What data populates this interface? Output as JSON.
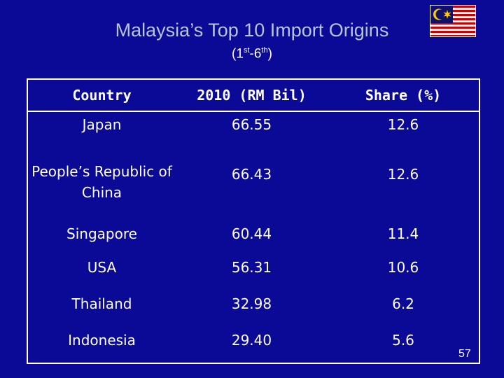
{
  "slide": {
    "title": "Malaysia’s Top 10 Import Origins",
    "subtitle": {
      "open": "(1",
      "sup1": "st",
      "mid": "-6",
      "sup2": "th",
      "close": ")"
    },
    "page_number": "57"
  },
  "flag": {
    "name": "malaysia-flag",
    "colors": {
      "red": "#cc0000",
      "white": "#ffffff",
      "blue": "#10106a",
      "yellow": "#ffcc00"
    }
  },
  "table": {
    "headers": [
      "Country",
      "2010 (RM Bil)",
      "Share (%)"
    ],
    "rows": [
      [
        "Japan",
        "66.55",
        "12.6"
      ],
      [
        "People’s Republic of China",
        "66.43",
        "12.6"
      ],
      [
        "Singapore",
        "60.44",
        "11.4"
      ],
      [
        "USA",
        "56.31",
        "10.6"
      ],
      [
        "Thailand",
        "32.98",
        "6.2"
      ],
      [
        "Indonesia",
        "29.40",
        "5.6"
      ]
    ]
  },
  "colors": {
    "background": "#0a0a96",
    "title": "#b8c4dc",
    "text": "#ffffff"
  }
}
